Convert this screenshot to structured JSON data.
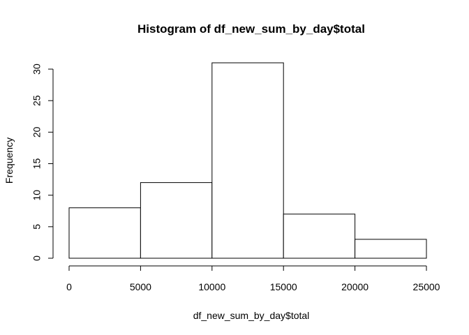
{
  "chart_data": {
    "type": "bar",
    "subtype": "histogram",
    "title": "Histogram of df_new_sum_by_day$total",
    "xlabel": "df_new_sum_by_day$total",
    "ylabel": "Frequency",
    "bins": [
      {
        "from": 0,
        "to": 5000,
        "count": 8
      },
      {
        "from": 5000,
        "to": 10000,
        "count": 12
      },
      {
        "from": 10000,
        "to": 15000,
        "count": 31
      },
      {
        "from": 15000,
        "to": 20000,
        "count": 7
      },
      {
        "from": 20000,
        "to": 25000,
        "count": 3
      }
    ],
    "xlim": [
      0,
      25000
    ],
    "ylim": [
      0,
      31
    ],
    "x_ticks": [
      0,
      5000,
      10000,
      15000,
      20000,
      25000
    ],
    "x_tick_labels": [
      "0",
      "5000",
      "10000",
      "15000",
      "20000",
      "25000"
    ],
    "y_ticks": [
      0,
      5,
      10,
      15,
      20,
      25,
      30
    ],
    "y_tick_labels": [
      "0",
      "5",
      "10",
      "15",
      "20",
      "25",
      "30"
    ],
    "grid": false,
    "legend": "none",
    "bar_fill": "#ffffff",
    "bar_stroke": "#000000"
  }
}
